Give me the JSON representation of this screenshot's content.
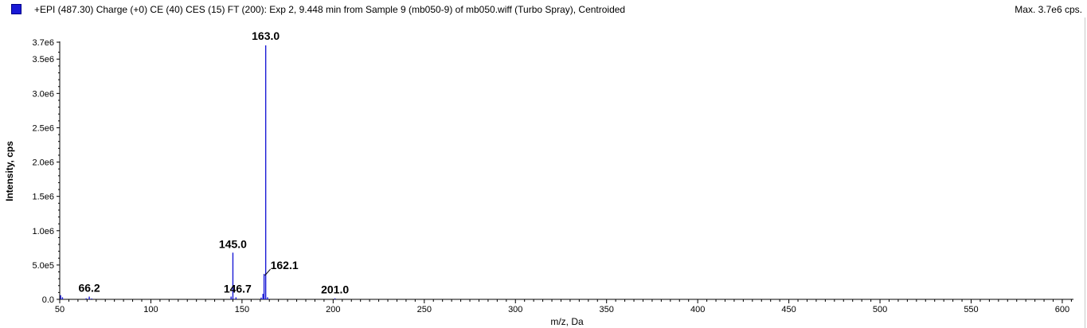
{
  "header": {
    "title": "+EPI (487.30) Charge (+0) CE (40) CES (15) FT (200): Exp 2, 9.448 min from Sample 9 (mb050-9) of mb050.wiff (Turbo Spray), Centroided",
    "max_label": "Max. 3.7e6 cps.",
    "series_color": "#1a1ad6"
  },
  "chart_data": {
    "type": "bar",
    "xlabel": "m/z, Da",
    "ylabel": "Intensity, cps",
    "xlim": [
      50,
      605
    ],
    "ylim": [
      0,
      3700000.0
    ],
    "grid": false,
    "x_ticks": [
      {
        "value": 50,
        "label": "50"
      },
      {
        "value": 100,
        "label": "100"
      },
      {
        "value": 150,
        "label": "150"
      },
      {
        "value": 200,
        "label": "200"
      },
      {
        "value": 250,
        "label": "250"
      },
      {
        "value": 300,
        "label": "300"
      },
      {
        "value": 350,
        "label": "350"
      },
      {
        "value": 400,
        "label": "400"
      },
      {
        "value": 450,
        "label": "450"
      },
      {
        "value": 500,
        "label": "500"
      },
      {
        "value": 550,
        "label": "550"
      },
      {
        "value": 600,
        "label": "600"
      }
    ],
    "y_ticks": [
      {
        "value": 0,
        "label": "0.0"
      },
      {
        "value": 500000,
        "label": "5.0e5"
      },
      {
        "value": 1000000,
        "label": "1.0e6"
      },
      {
        "value": 1500000,
        "label": "1.5e6"
      },
      {
        "value": 2000000,
        "label": "2.0e6"
      },
      {
        "value": 2500000,
        "label": "2.5e6"
      },
      {
        "value": 3000000,
        "label": "3.0e6"
      },
      {
        "value": 3500000,
        "label": "3.5e6"
      },
      {
        "value": 3700000,
        "label": "3.7e6"
      }
    ],
    "peaks": [
      {
        "mz": 50.5,
        "intensity": 60000
      },
      {
        "mz": 51.5,
        "intensity": 30000
      },
      {
        "mz": 64.5,
        "intensity": 15000
      },
      {
        "mz": 66.2,
        "intensity": 40000
      },
      {
        "mz": 67.5,
        "intensity": 12000
      },
      {
        "mz": 144.0,
        "intensity": 40000
      },
      {
        "mz": 145.0,
        "intensity": 680000
      },
      {
        "mz": 146.7,
        "intensity": 30000
      },
      {
        "mz": 160.5,
        "intensity": 25000
      },
      {
        "mz": 161.5,
        "intensity": 80000
      },
      {
        "mz": 162.1,
        "intensity": 370000
      },
      {
        "mz": 163.0,
        "intensity": 3700000
      },
      {
        "mz": 164.0,
        "intensity": 30000
      },
      {
        "mz": 201.0,
        "intensity": 15000
      }
    ],
    "labels": [
      {
        "text": "163.0",
        "mz": 163.0
      },
      {
        "text": "145.0",
        "mz": 145.0
      },
      {
        "text": "162.1",
        "mz": 162.1
      },
      {
        "text": "146.7",
        "mz": 146.7
      },
      {
        "text": "66.2",
        "mz": 66.2
      },
      {
        "text": "201.0",
        "mz": 201.0
      }
    ]
  }
}
